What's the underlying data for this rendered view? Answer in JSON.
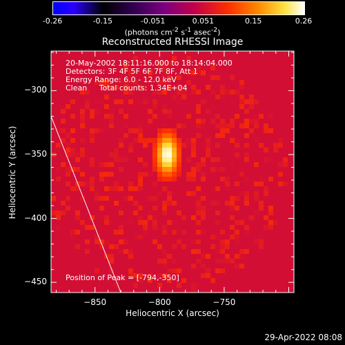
{
  "colorbar": {
    "ticks": [
      "-0.26",
      "-0.15",
      "-0.051",
      "0.051",
      "0.15",
      "0.26"
    ],
    "units_html": "(photons cm<sup>-2</sup> s<sup>-1</sup> asec<sup>-2</sup>)"
  },
  "info": {
    "line1": "20-May-2002 18:11:16.000 to 18:14:04.000",
    "line2": "Detectors: 3F 4F 5F 6F 7F 8F, Att 1",
    "line3": "Energy Range: 6.0 - 12.0 keV",
    "line4": "Clean     Total counts: 1.34E+04",
    "peak": "Position of Peak = [-794,-350]"
  },
  "footer_date": "29-Apr-2022 08:08",
  "chart_data": {
    "type": "heatmap",
    "title": "Reconstructed RHESSI Image",
    "xlabel": "Heliocentric X (arcsec)",
    "ylabel": "Heliocentric Y (arcsec)",
    "xlim": [
      -884,
      -696
    ],
    "ylim": [
      -458,
      -269
    ],
    "xticks": [
      -850,
      -800,
      -750
    ],
    "yticks": [
      -300,
      -350,
      -400,
      -450
    ],
    "colorbar_range": [
      -0.26,
      0.26
    ],
    "peak": {
      "x": -794,
      "y": -350
    },
    "limb_line": [
      [
        -884,
        -320
      ],
      [
        -830,
        -458
      ]
    ]
  }
}
